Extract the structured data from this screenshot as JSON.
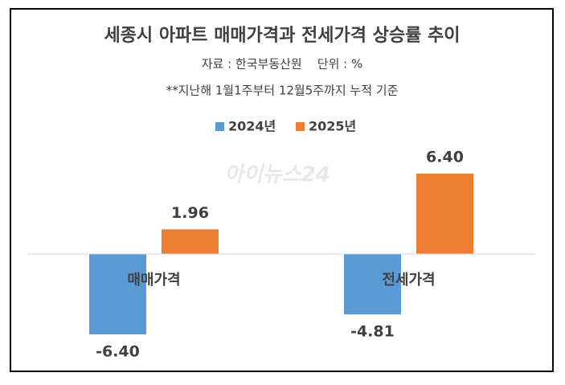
{
  "chart_data": {
    "type": "bar",
    "title": "세종시 아파트 매매가격과 전세가격 상승률 추이",
    "subtitle": "자료 : 한국부동산원    단위 : %",
    "note": "**지난해 1월1주부터 12월5주까지 누적 기준",
    "watermark": "아이뉴스24",
    "categories": [
      "매매가격",
      "전세가격"
    ],
    "series": [
      {
        "name": "2024년",
        "color": "#5b9bd5",
        "values": [
          -6.4,
          -4.81
        ],
        "value_labels": [
          "-6.40",
          "-4.81"
        ]
      },
      {
        "name": "2025년",
        "color": "#ed7d31",
        "values": [
          1.96,
          6.4
        ],
        "value_labels": [
          "1.96",
          "6.40"
        ]
      }
    ],
    "ylim": [
      -8,
      8
    ],
    "legend": "top"
  }
}
